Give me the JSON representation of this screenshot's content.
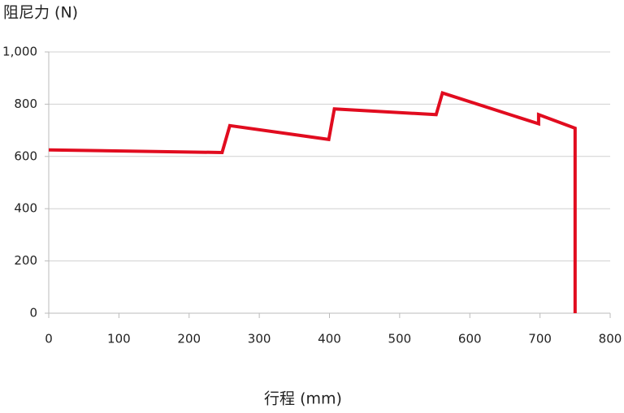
{
  "chart_data": {
    "type": "line",
    "title": "阻尼力 (N)",
    "x_label": "行程 (mm)",
    "x": [
      0,
      247,
      258,
      399,
      407,
      552,
      561,
      698,
      698,
      750,
      750
    ],
    "series": [
      {
        "color": "#e10c1f",
        "values": [
          625,
          615,
          718,
          665,
          782,
          760,
          843,
          725,
          760,
          708,
          0
        ]
      }
    ],
    "xlim": [
      0,
      800
    ],
    "xticks": [
      0,
      100,
      200,
      300,
      400,
      500,
      600,
      700,
      800
    ],
    "ylim": [
      0,
      1000
    ],
    "yticks": [
      0,
      200,
      400,
      600,
      800,
      {
        "value": 1000,
        "label": "1,000"
      }
    ],
    "grid": true
  }
}
